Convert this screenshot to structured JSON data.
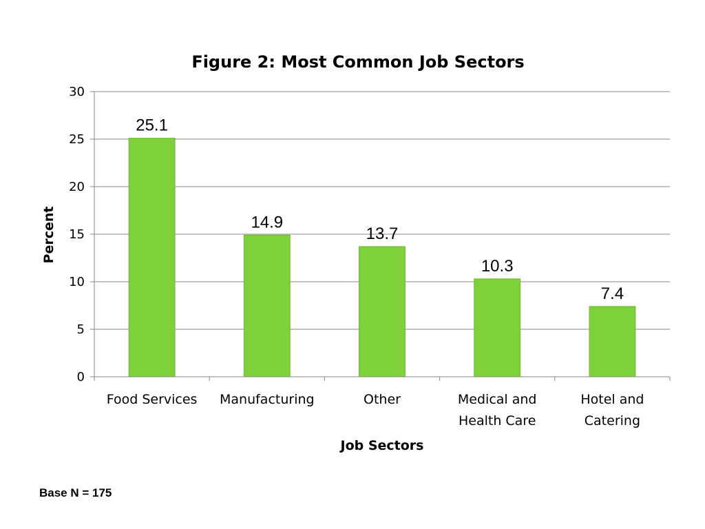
{
  "chart_data": {
    "type": "bar",
    "title": "Figure 2: Most Common Job Sectors",
    "xlabel": "Job Sectors",
    "ylabel": "Percent",
    "categories": [
      [
        "Food Services"
      ],
      [
        "Manufacturing"
      ],
      [
        "Other"
      ],
      [
        "Medical and",
        "Health Care"
      ],
      [
        "Hotel and",
        "Catering"
      ]
    ],
    "values": [
      25.1,
      14.9,
      13.7,
      10.3,
      7.4
    ],
    "value_labels": [
      "25.1",
      "14.9",
      "13.7",
      "10.3",
      "7.4"
    ],
    "ylim": [
      0,
      30
    ],
    "yticks": [
      0,
      5,
      10,
      15,
      20,
      25,
      30
    ],
    "grid": true,
    "bar_color": "#7ed13b",
    "legend": "none"
  },
  "footnote": "Base N = 175"
}
